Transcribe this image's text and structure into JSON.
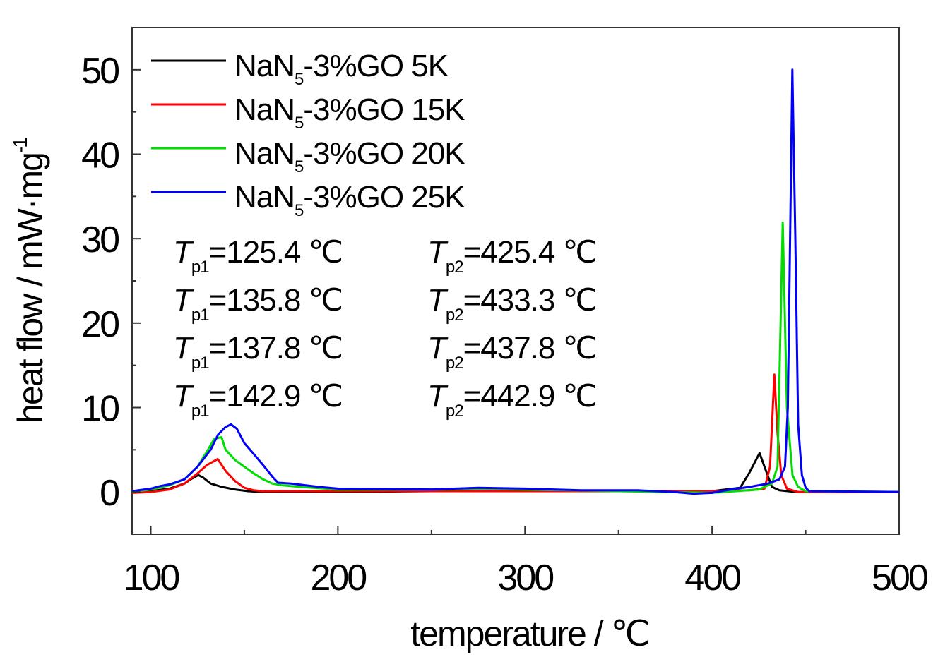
{
  "chart_data": {
    "type": "line",
    "xlabel": "temperature / ℃",
    "ylabel": "heat flow / mW·mg",
    "ylabel_sup": "-1",
    "xlim": [
      90,
      500
    ],
    "ylim": [
      -5,
      55
    ],
    "xticks": [
      100,
      200,
      300,
      400,
      500
    ],
    "yticks": [
      0,
      10,
      20,
      30,
      40,
      50
    ],
    "grid": false,
    "legend_position": "top-left",
    "series": [
      {
        "name_main": "NaN",
        "name_sub": "5",
        "name_tail": "-3%GO 5K",
        "color": "#000000",
        "x": [
          90,
          100,
          110,
          118,
          122,
          125.4,
          128,
          132,
          138,
          145,
          152,
          160,
          200,
          250,
          300,
          350,
          400,
          415,
          420,
          425.4,
          428,
          432,
          436,
          445,
          500
        ],
        "y": [
          0,
          0.1,
          0.4,
          1.0,
          1.6,
          2.0,
          1.7,
          1.0,
          0.6,
          0.3,
          0.1,
          0,
          0,
          0.1,
          0.1,
          0.1,
          0.1,
          0.5,
          2.3,
          4.6,
          3.0,
          0.6,
          0.2,
          0,
          0
        ]
      },
      {
        "name_main": "NaN",
        "name_sub": "5",
        "name_tail": "-3%GO 15K",
        "color": "#ff0000",
        "x": [
          90,
          100,
          110,
          118,
          125,
          130,
          135.8,
          140,
          145,
          150,
          155,
          160,
          200,
          250,
          300,
          350,
          400,
          420,
          428,
          431,
          433.3,
          435,
          437,
          440,
          446,
          500
        ],
        "y": [
          -0.1,
          0,
          0.3,
          1.0,
          2.2,
          3.2,
          3.9,
          2.5,
          1.3,
          0.5,
          0.2,
          0.1,
          0.1,
          0.1,
          0.1,
          0.1,
          0.1,
          0.2,
          0.4,
          3.0,
          13.9,
          7.0,
          2.0,
          0.4,
          0,
          0
        ]
      },
      {
        "name_main": "NaN",
        "name_sub": "5",
        "name_tail": "-3%GO 20K",
        "color": "#00dd00",
        "x": [
          90,
          100,
          110,
          118,
          125,
          130,
          134,
          137.8,
          140,
          145,
          150,
          155,
          160,
          165,
          170,
          180,
          200,
          250,
          280,
          300,
          350,
          400,
          425,
          432,
          435,
          437.8,
          440,
          443,
          446,
          450,
          500
        ],
        "y": [
          0,
          0.3,
          0.8,
          1.5,
          3.0,
          4.8,
          6.3,
          6.5,
          5.0,
          3.8,
          3.0,
          2.2,
          1.5,
          1.0,
          0.8,
          0.6,
          0.3,
          0.3,
          0.4,
          0.3,
          0.1,
          -0.1,
          0.3,
          1.0,
          3.0,
          31.9,
          10.0,
          2.0,
          0.6,
          0.1,
          0
        ]
      },
      {
        "name_main": "NaN",
        "name_sub": "5",
        "name_tail": "-3%GO 25K",
        "color": "#0000ff",
        "x": [
          90,
          100,
          105,
          110,
          118,
          125,
          132,
          136,
          140,
          142.9,
          146,
          150,
          155,
          160,
          165,
          168,
          175,
          190,
          200,
          250,
          275,
          300,
          330,
          360,
          380,
          390,
          400,
          410,
          420,
          430,
          436,
          439,
          440.5,
          442.9,
          444.5,
          446,
          448,
          450,
          452,
          500
        ],
        "y": [
          0.1,
          0.4,
          0.7,
          0.9,
          1.5,
          3.0,
          5.0,
          6.8,
          7.7,
          8.0,
          7.5,
          5.8,
          4.5,
          3.2,
          1.8,
          1.1,
          1.0,
          0.6,
          0.4,
          0.3,
          0.5,
          0.4,
          0.2,
          0.2,
          0.0,
          -0.2,
          -0.1,
          0.3,
          0.6,
          1.0,
          1.5,
          3.0,
          10.0,
          50.0,
          30.0,
          8.0,
          2.0,
          0.5,
          0.1,
          0
        ]
      }
    ],
    "annotations": [
      {
        "sym": "T",
        "sub1": "p1",
        "val1": "=125.4 ℃",
        "sub2": "p2",
        "val2": "=425.4 ℃"
      },
      {
        "sym": "T",
        "sub1": "p1",
        "val1": "=135.8 ℃",
        "sub2": "p2",
        "val2": "=433.3 ℃"
      },
      {
        "sym": "T",
        "sub1": "p1",
        "val1": "=137.8 ℃",
        "sub2": "p2",
        "val2": "=437.8 ℃"
      },
      {
        "sym": "T",
        "sub1": "p1",
        "val1": "=142.9 ℃",
        "sub2": "p2",
        "val2": "=442.9 ℃"
      }
    ]
  }
}
